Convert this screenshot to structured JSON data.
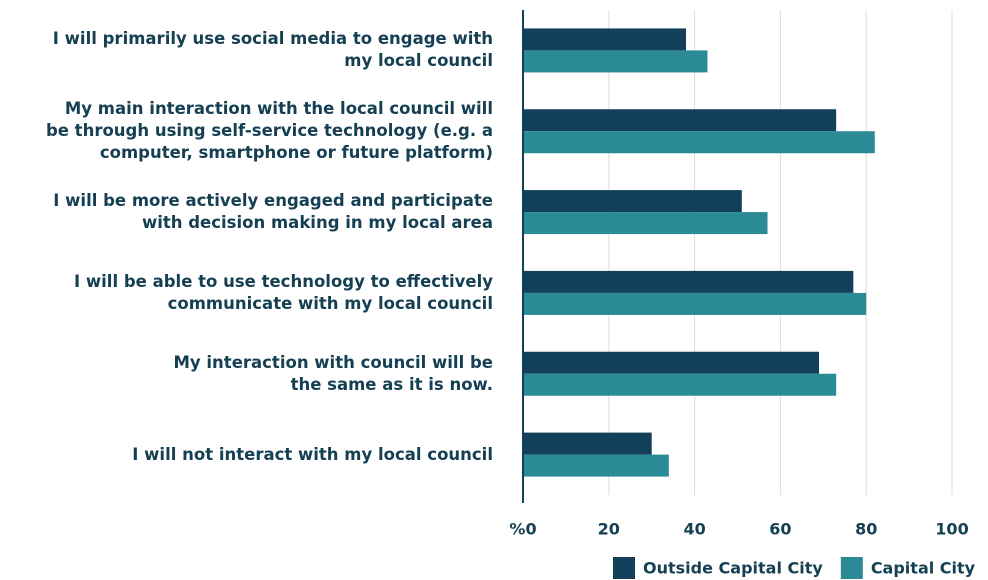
{
  "chart_data": {
    "type": "barh",
    "categories": [
      "I will primarily use social media to engage with\nmy local council",
      "My main interaction with the local council will\nbe through using self-service technology (e.g. a\ncomputer, smartphone or future platform)",
      "I will be more actively engaged and participate\nwith decision making in my local area",
      "I will be able to use technology to effectively\ncommunicate with my local council",
      "My interaction with council will be\nthe same as it is now.",
      "I will not interact with my local council"
    ],
    "series": [
      {
        "name": "Outside Capital City",
        "color": "#12405a",
        "values": [
          38,
          73,
          51,
          77,
          69,
          30
        ]
      },
      {
        "name": "Capital City",
        "color": "#2a8b97",
        "values": [
          43,
          82,
          57,
          80,
          73,
          34
        ]
      }
    ],
    "xlim": [
      0,
      100
    ],
    "xticks": [
      {
        "value": 0,
        "label": "%0"
      },
      20,
      40,
      60,
      80,
      100
    ],
    "grid": true,
    "legend": "bottom-right"
  }
}
